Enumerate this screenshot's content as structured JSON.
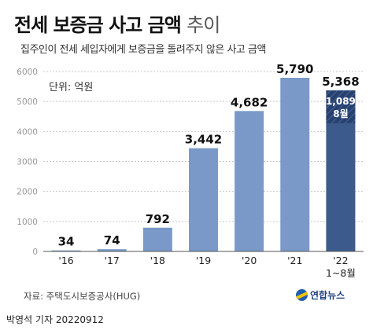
{
  "header": {
    "title_main": "전세 보증금 사고 금액",
    "title_suffix": "추이",
    "subtitle": "집주인이 전세 세입자에게 보증금을 돌려주지 않은 사고 금액"
  },
  "chart_data": {
    "type": "bar",
    "title": "전세 보증금 사고 금액 추이",
    "subtitle": "집주인이 전세 세입자에게 보증금을 돌려주지 않은 사고 금액",
    "unit_label": "단위: 억원",
    "categories": [
      "'16",
      "'17",
      "'18",
      "'19",
      "'20",
      "'21",
      "'22"
    ],
    "category_sublabels": [
      "",
      "",
      "",
      "",
      "",
      "",
      "1~8월"
    ],
    "values": [
      34,
      74,
      792,
      3442,
      4682,
      5790,
      5368
    ],
    "value_labels": [
      "34",
      "74",
      "792",
      "3,442",
      "4,682",
      "5,790",
      "5,368"
    ],
    "highlight": {
      "category": "'22",
      "segment_value": 1089,
      "segment_label_value": "1,089",
      "segment_label_period": "8월"
    },
    "yticks": [
      "0",
      "1000",
      "2000",
      "3000",
      "4000",
      "5000",
      "6000"
    ],
    "ylim": [
      0,
      6000
    ],
    "grid": true,
    "colors": {
      "bar": "#7a99c8",
      "highlight_bar": "#3c5a8c",
      "highlight_segment": "#27406c"
    }
  },
  "footer": {
    "source": "자료: 주택도시보증공사(HUG)",
    "logo_text": "연합뉴스",
    "byline": "박영석 기자 20220912"
  }
}
